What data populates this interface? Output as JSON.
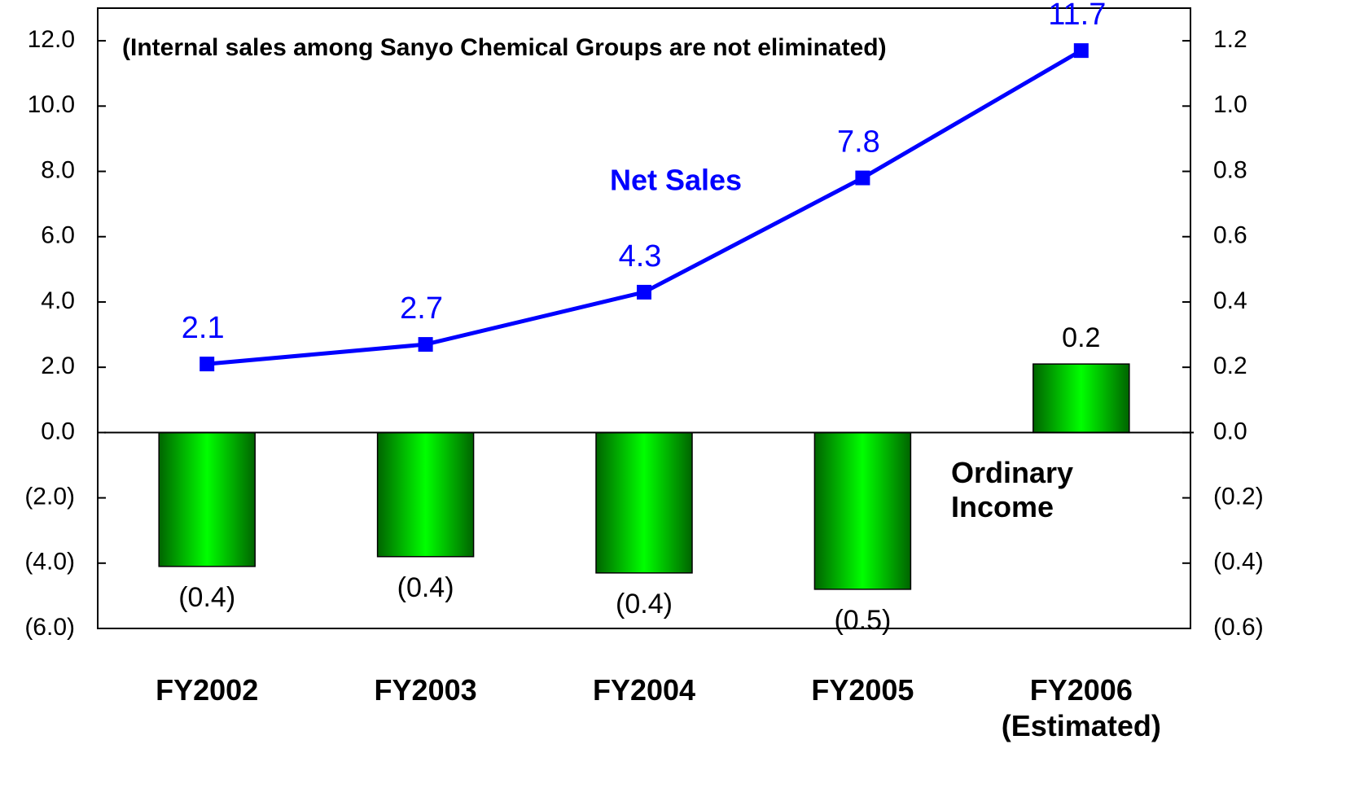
{
  "chart_data": {
    "type": "bar-line",
    "annotation": "(Internal sales among Sanyo Chemical Groups are not eliminated)",
    "categories": [
      "FY2002",
      "FY2003",
      "FY2004",
      "FY2005",
      "FY2006\n(Estimated)"
    ],
    "series": [
      {
        "name": "Net Sales",
        "type": "line",
        "color": "#0000ff",
        "axis": "y",
        "values": [
          2.1,
          2.7,
          4.3,
          7.8,
          11.7
        ]
      },
      {
        "name": "Ordinary Income",
        "type": "bar",
        "color": "#00ff00",
        "axis": "y2",
        "values": [
          -0.41,
          -0.38,
          -0.43,
          -0.48,
          0.21
        ],
        "value_labels": [
          "(0.4)",
          "(0.4)",
          "(0.4)",
          "(0.5)",
          "0.2"
        ]
      }
    ],
    "ylim": [
      -6,
      13
    ],
    "yticks": [
      {
        "value": -6,
        "label": "(6.0)"
      },
      {
        "value": -4,
        "label": "(4.0)"
      },
      {
        "value": -2,
        "label": "(2.0)"
      },
      {
        "value": 0,
        "label": "0.0"
      },
      {
        "value": 2,
        "label": "2.0"
      },
      {
        "value": 4,
        "label": "4.0"
      },
      {
        "value": 6,
        "label": "6.0"
      },
      {
        "value": 8,
        "label": "8.0"
      },
      {
        "value": 10,
        "label": "10.0"
      },
      {
        "value": 12,
        "label": "12.0"
      }
    ],
    "y2lim": [
      -0.6,
      1.3
    ],
    "y2ticks": [
      {
        "value": -0.6,
        "label": "(0.6)"
      },
      {
        "value": -0.4,
        "label": "(0.4)"
      },
      {
        "value": -0.2,
        "label": "(0.2)"
      },
      {
        "value": 0,
        "label": "0.0"
      },
      0.2,
      0.4,
      0.6,
      0.8,
      {
        "value": 1,
        "label": "1.0"
      },
      1.2
    ]
  }
}
